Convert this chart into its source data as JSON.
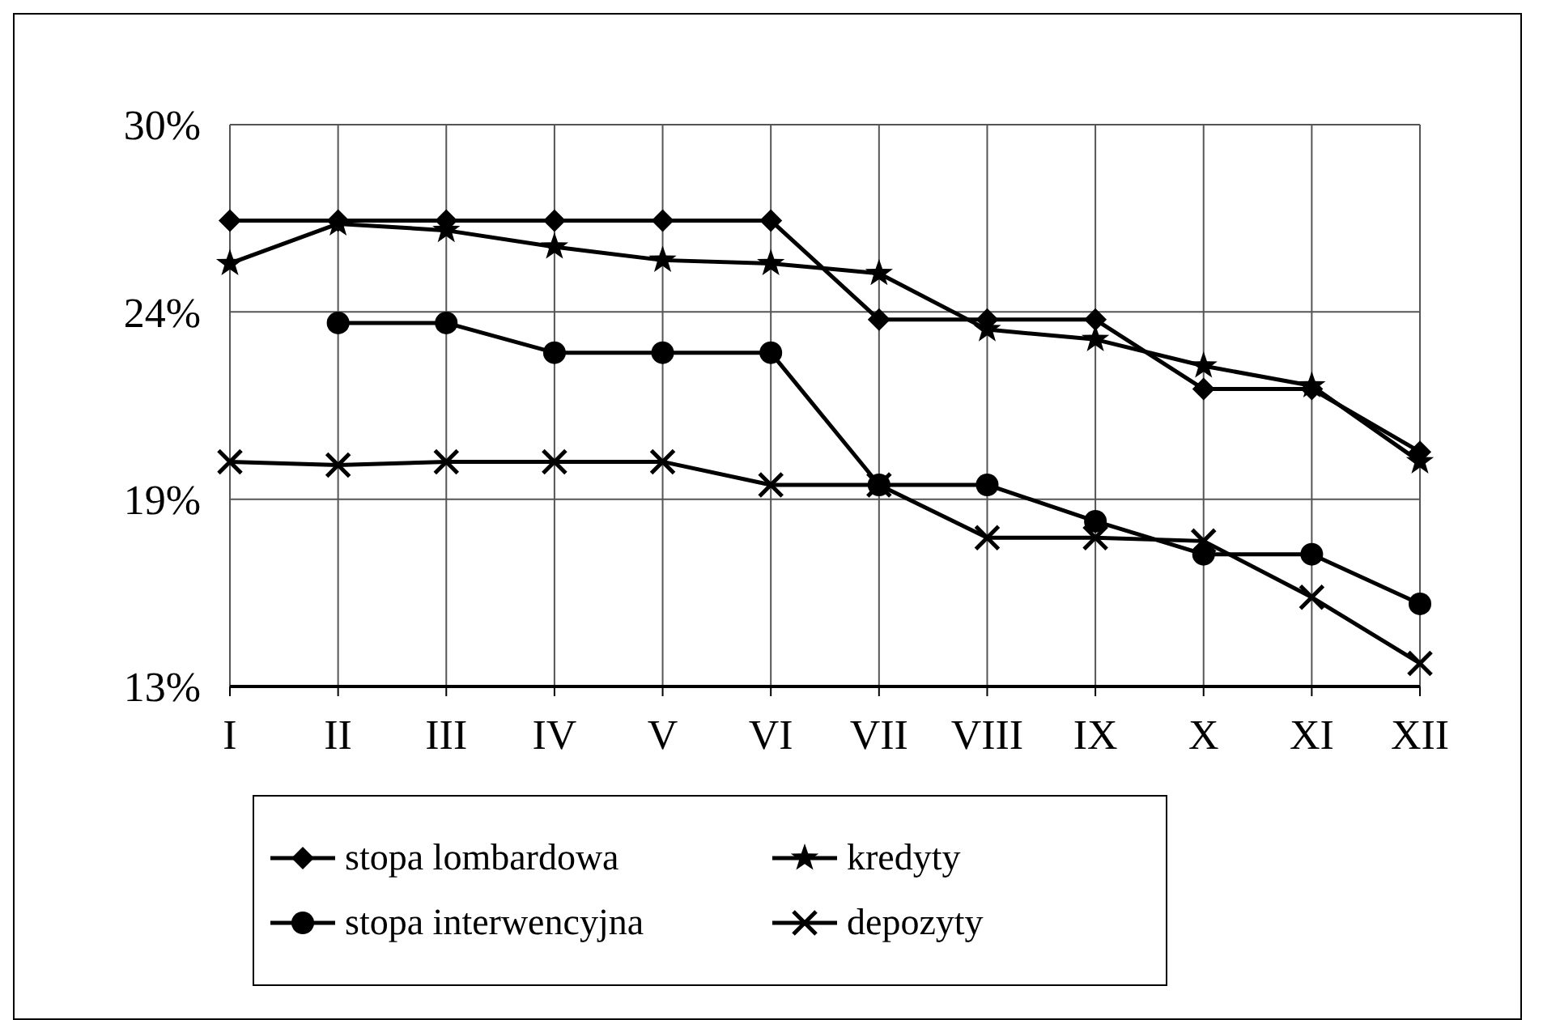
{
  "chart_data": {
    "type": "line",
    "categories": [
      "I",
      "II",
      "III",
      "IV",
      "V",
      "VI",
      "VII",
      "VIII",
      "IX",
      "X",
      "XI",
      "XII"
    ],
    "ylim": [
      13,
      30
    ],
    "yticks": [
      {
        "value": 13,
        "label": "13%"
      },
      {
        "value": 18.667,
        "label": "19%"
      },
      {
        "value": 24.333,
        "label": "24%"
      },
      {
        "value": 30,
        "label": "30%"
      }
    ],
    "grid": true,
    "legend": "bottom",
    "line_style": "solid",
    "series": [
      {
        "name": "stopa lombardowa",
        "color": "#000000",
        "marker": "diamond",
        "values": [
          27.1,
          27.1,
          27.1,
          27.1,
          27.1,
          27.1,
          24.1,
          24.1,
          24.1,
          22,
          22,
          20.1
        ]
      },
      {
        "name": "kredyty",
        "color": "#000000",
        "marker": "star",
        "values": [
          25.8,
          27,
          26.8,
          26.3,
          25.9,
          25.8,
          25.5,
          23.8,
          23.5,
          22.7,
          22.1,
          19.8
        ]
      },
      {
        "name": "stopa interwencyjna",
        "color": "#000000",
        "marker": "circle",
        "values": [
          null,
          24,
          24,
          23.1,
          23.1,
          23.1,
          19.1,
          19.1,
          18,
          17,
          17,
          15.5
        ]
      },
      {
        "name": "depozyty",
        "color": "#000000",
        "marker": "cross",
        "values": [
          19.8,
          19.7,
          19.8,
          19.8,
          19.8,
          19.1,
          19.1,
          17.5,
          17.5,
          17.4,
          15.7,
          13.7
        ]
      }
    ]
  }
}
